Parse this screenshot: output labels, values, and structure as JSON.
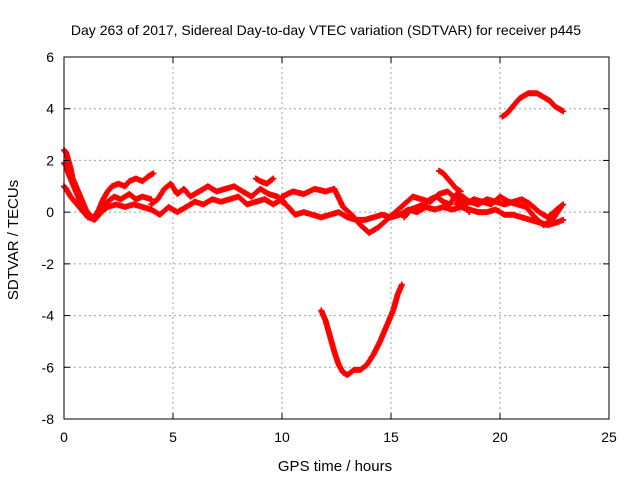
{
  "chart_data": {
    "type": "scatter",
    "title": "Day 263 of 2017, Sidereal Day-to-day VTEC variation (SDTVAR) for receiver p445",
    "xlabel": "GPS time / hours",
    "ylabel": "SDTVAR / TECUs",
    "xlim": [
      0,
      25
    ],
    "ylim": [
      -8,
      6
    ],
    "xticks": [
      0,
      5,
      10,
      15,
      20,
      25
    ],
    "yticks": [
      -8,
      -6,
      -4,
      -2,
      0,
      2,
      4,
      6
    ],
    "xtick_labels": [
      "0",
      "5",
      "10",
      "15",
      "20",
      "25"
    ],
    "ytick_labels": [
      "-8",
      "-6",
      "-4",
      "-2",
      "0",
      "2",
      "4",
      "6"
    ],
    "grid": true,
    "color": "#ff0000",
    "marker": "plus",
    "series": [
      {
        "name": "s1",
        "x": [
          0.0,
          0.1,
          0.2,
          0.3,
          0.4,
          0.6,
          0.8,
          1.0,
          1.2,
          1.4,
          1.6,
          1.8,
          2.0,
          2.2,
          2.5,
          2.8,
          3.0,
          3.3,
          3.6,
          3.9,
          4.1
        ],
        "values": [
          2.4,
          2.3,
          2.0,
          1.7,
          1.3,
          0.9,
          0.5,
          0.1,
          -0.15,
          -0.2,
          0.1,
          0.5,
          0.8,
          1.0,
          1.1,
          1.0,
          1.2,
          1.3,
          1.2,
          1.4,
          1.5
        ]
      },
      {
        "name": "s2",
        "x": [
          0.0,
          0.1,
          0.2,
          0.4,
          0.6,
          0.8,
          1.0,
          1.2,
          1.4,
          1.6,
          1.8,
          2.0,
          2.3,
          2.6,
          3.0,
          3.3,
          3.6,
          4.0
        ],
        "values": [
          1.9,
          1.8,
          1.5,
          1.1,
          0.7,
          0.3,
          0.0,
          -0.2,
          -0.3,
          -0.1,
          0.2,
          0.4,
          0.6,
          0.5,
          0.7,
          0.5,
          0.6,
          0.5
        ]
      },
      {
        "name": "s3",
        "x": [
          0.0,
          0.1,
          0.3,
          0.5,
          0.7,
          0.9,
          1.1,
          1.3,
          1.5,
          1.7,
          2.0,
          2.4,
          2.8,
          3.2,
          3.6,
          4.0,
          4.4,
          4.8,
          5.2,
          5.6,
          6.0,
          6.4,
          6.8,
          7.2,
          7.6,
          8.0,
          8.4,
          8.8,
          9.2,
          9.6,
          10.0
        ],
        "values": [
          1.0,
          0.9,
          0.6,
          0.4,
          0.2,
          0.0,
          -0.2,
          -0.25,
          -0.2,
          0.0,
          0.2,
          0.3,
          0.2,
          0.3,
          0.2,
          0.1,
          -0.1,
          0.2,
          0.0,
          0.2,
          0.4,
          0.3,
          0.5,
          0.4,
          0.5,
          0.6,
          0.3,
          0.4,
          0.5,
          0.3,
          0.5
        ]
      },
      {
        "name": "s4",
        "x": [
          4.0,
          4.3,
          4.6,
          4.9,
          5.2,
          5.5,
          5.8,
          6.2,
          6.6,
          7.0,
          7.4,
          7.8,
          8.2,
          8.6,
          9.0,
          9.4,
          9.8,
          10.1
        ],
        "values": [
          0.3,
          0.5,
          0.9,
          1.1,
          0.7,
          0.9,
          0.6,
          0.8,
          1.0,
          0.8,
          0.9,
          1.0,
          0.8,
          0.6,
          0.9,
          0.7,
          0.6,
          0.4
        ]
      },
      {
        "name": "s5",
        "x": [
          8.8,
          9.0,
          9.3,
          9.6
        ],
        "values": [
          1.3,
          1.2,
          1.1,
          1.3
        ]
      },
      {
        "name": "s6",
        "x": [
          10.0,
          10.3,
          10.6,
          11.0,
          11.4,
          11.8,
          12.2,
          12.6,
          13.0,
          13.4,
          13.8,
          14.2,
          14.6,
          15.0,
          15.4,
          15.8,
          16.2,
          16.6,
          17.0,
          17.4,
          17.8,
          18.2,
          18.6,
          19.0,
          19.4,
          19.8,
          20.2,
          20.6,
          21.0,
          21.4,
          21.8,
          22.2,
          22.6,
          22.9
        ],
        "values": [
          0.4,
          0.2,
          -0.1,
          0.0,
          -0.1,
          -0.2,
          -0.1,
          0.0,
          -0.2,
          -0.3,
          -0.3,
          -0.2,
          -0.1,
          -0.2,
          -0.1,
          0.1,
          0.0,
          0.2,
          0.1,
          0.2,
          0.1,
          0.2,
          0.1,
          0.0,
          0.0,
          0.1,
          -0.1,
          -0.1,
          -0.2,
          -0.3,
          -0.4,
          -0.5,
          -0.4,
          -0.3
        ]
      },
      {
        "name": "s7",
        "x": [
          10.0,
          10.5,
          11.0,
          11.5,
          12.0,
          12.4,
          12.8,
          13.2,
          13.6,
          14.0,
          14.4,
          14.8,
          15.2,
          15.6,
          16.0,
          16.4,
          16.8,
          17.2,
          17.6,
          18.0,
          18.4,
          18.8,
          19.2,
          19.6,
          20.0,
          20.4,
          20.8,
          21.2,
          21.6,
          22.0,
          22.4,
          22.8
        ],
        "values": [
          0.6,
          0.8,
          0.7,
          0.9,
          0.8,
          0.9,
          0.2,
          -0.1,
          -0.5,
          -0.8,
          -0.6,
          -0.3,
          0.0,
          0.3,
          0.6,
          0.5,
          0.4,
          0.7,
          0.8,
          0.5,
          0.3,
          0.5,
          0.4,
          0.3,
          0.6,
          0.4,
          0.3,
          0.2,
          -0.2,
          -0.5,
          -0.3,
          0.2
        ]
      },
      {
        "name": "s8",
        "x": [
          15.6,
          15.9,
          16.2,
          16.5,
          16.8,
          17.1,
          17.4,
          17.7,
          18.0,
          18.3,
          18.6,
          19.0,
          19.4,
          19.8,
          20.2,
          20.6,
          21.0,
          21.4,
          21.8,
          22.2,
          22.6,
          22.9
        ],
        "values": [
          -0.2,
          0.1,
          0.2,
          0.3,
          0.5,
          0.6,
          0.4,
          0.3,
          0.7,
          0.6,
          0.4,
          0.3,
          0.5,
          0.4,
          0.3,
          0.4,
          0.5,
          0.3,
          0.0,
          -0.2,
          0.1,
          0.3
        ]
      },
      {
        "name": "s9",
        "x": [
          17.2,
          17.4,
          17.6,
          17.8,
          18.0,
          18.2
        ],
        "values": [
          1.6,
          1.5,
          1.3,
          1.1,
          0.9,
          0.8
        ]
      },
      {
        "name": "s10",
        "x": [
          18.0,
          18.2,
          18.4,
          18.6
        ],
        "values": [
          0.3,
          0.5,
          0.2,
          0.0
        ]
      },
      {
        "name": "s11",
        "x": [
          11.8,
          12.0,
          12.2,
          12.4,
          12.6,
          12.8,
          13.0,
          13.3,
          13.6,
          13.9,
          14.2,
          14.5,
          14.8,
          15.1,
          15.3,
          15.5
        ],
        "values": [
          -3.8,
          -4.2,
          -4.8,
          -5.4,
          -5.9,
          -6.2,
          -6.3,
          -6.1,
          -6.1,
          -5.9,
          -5.5,
          -5.0,
          -4.4,
          -3.8,
          -3.2,
          -2.8
        ]
      },
      {
        "name": "s12",
        "x": [
          20.1,
          20.3,
          20.5,
          20.7,
          20.9,
          21.1,
          21.3,
          21.5,
          21.7,
          21.9,
          22.1,
          22.3,
          22.5,
          22.7,
          22.9
        ],
        "values": [
          3.7,
          3.8,
          4.0,
          4.2,
          4.4,
          4.5,
          4.6,
          4.6,
          4.6,
          4.5,
          4.4,
          4.3,
          4.1,
          4.0,
          3.9
        ]
      }
    ]
  }
}
